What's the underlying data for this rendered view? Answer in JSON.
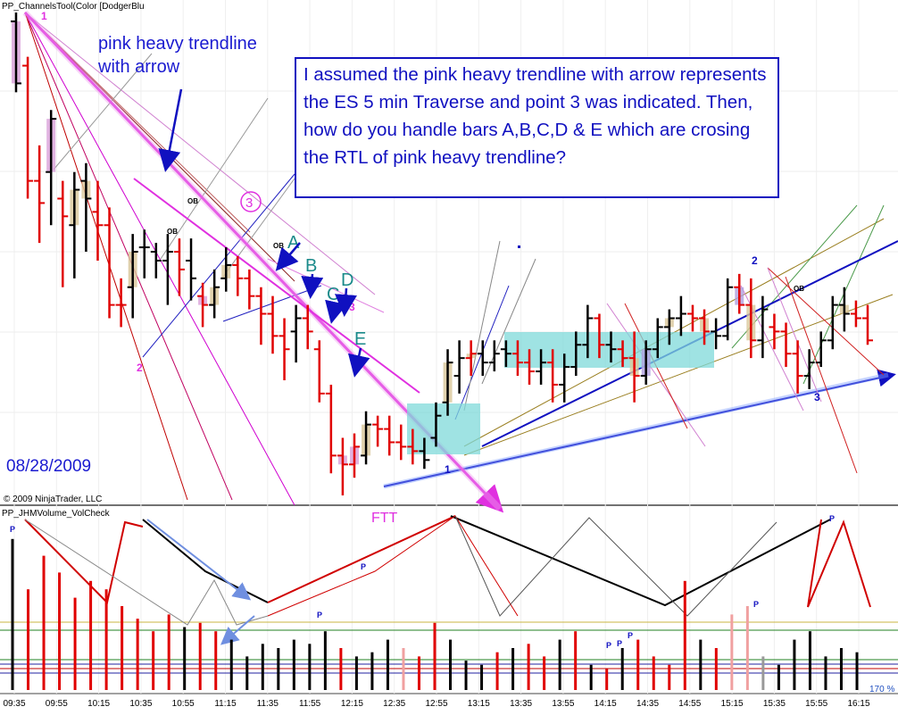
{
  "chart_data": [
    {
      "type": "candlestick",
      "indicator_label": "PP_ChannelsTool(Color [DodgerBlu",
      "copyright": "© 2009 NinjaTrader, LLC",
      "date_label": "08/28/2009",
      "note": "pink heavy trendline\nwith arrow",
      "question": "I assumed the pink heavy trendline with arrow represents the ES 5 min Traverse and point 3 was indicated. Then, how do you handle bars A,B,C,D & E which are crosing  the RTL of pink heavy trendline?",
      "bars": [
        {
          "o": 10,
          "h": 0,
          "l": 90,
          "c": 80,
          "col": "black",
          "shade": "pink"
        },
        {
          "o": 60,
          "h": 50,
          "l": 210,
          "c": 190,
          "col": "red"
        },
        {
          "o": 190,
          "h": 150,
          "l": 260,
          "c": 215,
          "col": "red"
        },
        {
          "o": 180,
          "h": 110,
          "l": 240,
          "c": 120,
          "col": "black",
          "shade": "pink"
        },
        {
          "o": 210,
          "h": 190,
          "l": 310,
          "c": 230,
          "col": "red"
        },
        {
          "o": 240,
          "h": 180,
          "l": 300,
          "c": 200,
          "col": "black",
          "shade": "tan"
        },
        {
          "o": 190,
          "h": 170,
          "l": 270,
          "c": 210,
          "col": "black",
          "shade": "tan"
        },
        {
          "o": 225,
          "h": 190,
          "l": 280,
          "c": 240,
          "col": "red"
        },
        {
          "o": 240,
          "h": 220,
          "l": 345,
          "c": 330,
          "col": "red"
        },
        {
          "o": 330,
          "h": 300,
          "l": 355,
          "c": 330,
          "col": "red"
        },
        {
          "o": 310,
          "h": 250,
          "l": 345,
          "c": 270,
          "col": "black",
          "shade": "tan"
        },
        {
          "o": 265,
          "h": 245,
          "l": 300,
          "c": 265,
          "col": "black"
        },
        {
          "o": 270,
          "h": 260,
          "l": 300,
          "c": 280,
          "col": "black"
        },
        {
          "o": 280,
          "h": 250,
          "l": 330,
          "c": 270,
          "col": "black"
        },
        {
          "o": 270,
          "h": 255,
          "l": 320,
          "c": 290,
          "col": "red"
        },
        {
          "o": 280,
          "h": 255,
          "l": 325,
          "c": 300,
          "col": "black"
        },
        {
          "o": 320,
          "h": 305,
          "l": 355,
          "c": 330,
          "col": "red",
          "shade": "pink"
        },
        {
          "o": 330,
          "h": 290,
          "l": 345,
          "c": 310,
          "col": "black",
          "shade": "tan"
        },
        {
          "o": 300,
          "h": 265,
          "l": 315,
          "c": 285,
          "col": "black",
          "shade": "tan"
        },
        {
          "o": 285,
          "h": 275,
          "l": 320,
          "c": 300,
          "col": "red"
        },
        {
          "o": 300,
          "h": 290,
          "l": 335,
          "c": 320,
          "col": "red"
        },
        {
          "o": 320,
          "h": 310,
          "l": 375,
          "c": 340,
          "col": "red"
        },
        {
          "o": 340,
          "h": 320,
          "l": 385,
          "c": 365,
          "col": "red"
        },
        {
          "o": 365,
          "h": 345,
          "l": 415,
          "c": 380,
          "col": "red"
        },
        {
          "o": 360,
          "h": 330,
          "l": 395,
          "c": 345,
          "col": "black"
        },
        {
          "o": 345,
          "h": 330,
          "l": 380,
          "c": 360,
          "col": "red"
        },
        {
          "o": 380,
          "h": 370,
          "l": 440,
          "c": 430,
          "col": "red"
        },
        {
          "o": 430,
          "h": 420,
          "l": 520,
          "c": 500,
          "col": "red"
        },
        {
          "o": 500,
          "h": 480,
          "l": 545,
          "c": 510,
          "col": "red",
          "shade": "pink"
        },
        {
          "o": 510,
          "h": 475,
          "l": 525,
          "c": 490,
          "col": "red",
          "shade": "pink"
        },
        {
          "o": 500,
          "h": 450,
          "l": 510,
          "c": 465,
          "col": "black",
          "shade": "tan"
        },
        {
          "o": 465,
          "h": 455,
          "l": 490,
          "c": 470,
          "col": "red"
        },
        {
          "o": 470,
          "h": 455,
          "l": 500,
          "c": 485,
          "col": "red"
        },
        {
          "o": 485,
          "h": 465,
          "l": 505,
          "c": 490,
          "col": "red"
        },
        {
          "o": 490,
          "h": 470,
          "l": 510,
          "c": 495,
          "col": "red"
        },
        {
          "o": 495,
          "h": 480,
          "l": 515,
          "c": 505,
          "col": "black"
        },
        {
          "o": 480,
          "h": 440,
          "l": 490,
          "c": 455,
          "col": "black"
        },
        {
          "o": 440,
          "h": 380,
          "l": 455,
          "c": 395,
          "col": "black",
          "shade": "tan"
        },
        {
          "o": 410,
          "h": 370,
          "l": 430,
          "c": 390,
          "col": "black"
        },
        {
          "o": 390,
          "h": 370,
          "l": 410,
          "c": 385,
          "col": "red",
          "shade": "tan"
        },
        {
          "o": 385,
          "h": 370,
          "l": 410,
          "c": 395,
          "col": "black"
        },
        {
          "o": 395,
          "h": 370,
          "l": 405,
          "c": 385,
          "col": "black"
        },
        {
          "o": 380,
          "h": 370,
          "l": 400,
          "c": 385,
          "col": "black"
        },
        {
          "o": 385,
          "h": 370,
          "l": 410,
          "c": 395,
          "col": "red"
        },
        {
          "o": 395,
          "h": 380,
          "l": 420,
          "c": 405,
          "col": "red"
        },
        {
          "o": 405,
          "h": 380,
          "l": 420,
          "c": 395,
          "col": "black"
        },
        {
          "o": 395,
          "h": 380,
          "l": 440,
          "c": 420,
          "col": "red"
        },
        {
          "o": 420,
          "h": 385,
          "l": 440,
          "c": 400,
          "col": "black"
        },
        {
          "o": 400,
          "h": 360,
          "l": 410,
          "c": 375,
          "col": "black"
        },
        {
          "o": 375,
          "h": 330,
          "l": 390,
          "c": 345,
          "col": "black"
        },
        {
          "o": 345,
          "h": 340,
          "l": 390,
          "c": 375,
          "col": "red"
        },
        {
          "o": 375,
          "h": 360,
          "l": 395,
          "c": 380,
          "col": "black"
        },
        {
          "o": 380,
          "h": 370,
          "l": 400,
          "c": 390,
          "col": "red"
        },
        {
          "o": 390,
          "h": 360,
          "l": 440,
          "c": 410,
          "col": "red",
          "shade": "tan"
        },
        {
          "o": 410,
          "h": 370,
          "l": 420,
          "c": 380,
          "col": "black",
          "shade": "purple"
        },
        {
          "o": 380,
          "h": 345,
          "l": 390,
          "c": 355,
          "col": "black"
        },
        {
          "o": 355,
          "h": 335,
          "l": 375,
          "c": 345,
          "col": "black",
          "shade": "tan"
        },
        {
          "o": 345,
          "h": 320,
          "l": 365,
          "c": 340,
          "col": "black"
        },
        {
          "o": 340,
          "h": 330,
          "l": 360,
          "c": 345,
          "col": "red"
        },
        {
          "o": 345,
          "h": 335,
          "l": 375,
          "c": 360,
          "col": "red",
          "shade": "tan"
        },
        {
          "o": 360,
          "h": 345,
          "l": 380,
          "c": 365,
          "col": "black"
        },
        {
          "o": 365,
          "h": 300,
          "l": 370,
          "c": 310,
          "col": "black"
        },
        {
          "o": 310,
          "h": 295,
          "l": 340,
          "c": 330,
          "col": "red",
          "shade": "purple"
        },
        {
          "o": 330,
          "h": 300,
          "l": 390,
          "c": 370,
          "col": "red",
          "shade": "tan"
        },
        {
          "o": 370,
          "h": 320,
          "l": 390,
          "c": 335,
          "col": "black"
        },
        {
          "o": 355,
          "h": 340,
          "l": 380,
          "c": 360,
          "col": "red"
        },
        {
          "o": 360,
          "h": 350,
          "l": 400,
          "c": 385,
          "col": "red"
        },
        {
          "o": 385,
          "h": 370,
          "l": 430,
          "c": 410,
          "col": "red"
        },
        {
          "o": 410,
          "h": 380,
          "l": 425,
          "c": 395,
          "col": "black"
        },
        {
          "o": 395,
          "h": 360,
          "l": 400,
          "c": 370,
          "col": "black"
        },
        {
          "o": 370,
          "h": 320,
          "l": 380,
          "c": 330,
          "col": "black"
        },
        {
          "o": 330,
          "h": 310,
          "l": 360,
          "c": 340,
          "col": "black",
          "shade": "tan"
        },
        {
          "o": 340,
          "h": 325,
          "l": 355,
          "c": 345,
          "col": "red"
        },
        {
          "o": 345,
          "h": 330,
          "l": 375,
          "c": 370,
          "col": "red"
        }
      ],
      "volume": [
        {
          "v": 180,
          "col": "black"
        },
        {
          "v": 120,
          "col": "red"
        },
        {
          "v": 160,
          "col": "red"
        },
        {
          "v": 140,
          "col": "red"
        },
        {
          "v": 110,
          "col": "red"
        },
        {
          "v": 130,
          "col": "red"
        },
        {
          "v": 120,
          "col": "red"
        },
        {
          "v": 100,
          "col": "red"
        },
        {
          "v": 85,
          "col": "red"
        },
        {
          "v": 70,
          "col": "red"
        },
        {
          "v": 90,
          "col": "red"
        },
        {
          "v": 75,
          "col": "black"
        },
        {
          "v": 80,
          "col": "red"
        },
        {
          "v": 70,
          "col": "red"
        },
        {
          "v": 60,
          "col": "black"
        },
        {
          "v": 40,
          "col": "black"
        },
        {
          "v": 55,
          "col": "black"
        },
        {
          "v": 50,
          "col": "black"
        },
        {
          "v": 60,
          "col": "black"
        },
        {
          "v": 55,
          "col": "black"
        },
        {
          "v": 70,
          "col": "black"
        },
        {
          "v": 50,
          "col": "red"
        },
        {
          "v": 40,
          "col": "black"
        },
        {
          "v": 45,
          "col": "black"
        },
        {
          "v": 60,
          "col": "black"
        },
        {
          "v": 50,
          "col": "pink"
        },
        {
          "v": 40,
          "col": "red"
        },
        {
          "v": 80,
          "col": "red"
        },
        {
          "v": 60,
          "col": "black"
        },
        {
          "v": 35,
          "col": "black"
        },
        {
          "v": 30,
          "col": "black"
        },
        {
          "v": 45,
          "col": "red"
        },
        {
          "v": 50,
          "col": "black"
        },
        {
          "v": 55,
          "col": "red"
        },
        {
          "v": 40,
          "col": "red"
        },
        {
          "v": 60,
          "col": "black"
        },
        {
          "v": 70,
          "col": "red"
        },
        {
          "v": 30,
          "col": "black"
        },
        {
          "v": 25,
          "col": "red"
        },
        {
          "v": 50,
          "col": "black"
        },
        {
          "v": 60,
          "col": "red"
        },
        {
          "v": 40,
          "col": "red"
        },
        {
          "v": 30,
          "col": "red"
        },
        {
          "v": 130,
          "col": "red"
        },
        {
          "v": 60,
          "col": "black"
        },
        {
          "v": 50,
          "col": "red"
        },
        {
          "v": 90,
          "col": "pink"
        },
        {
          "v": 100,
          "col": "pink"
        },
        {
          "v": 40,
          "col": "gray"
        },
        {
          "v": 30,
          "col": "black"
        },
        {
          "v": 60,
          "col": "black"
        },
        {
          "v": 70,
          "col": "black"
        },
        {
          "v": 40,
          "col": "black"
        },
        {
          "v": 50,
          "col": "black"
        },
        {
          "v": 45,
          "col": "black"
        }
      ],
      "x_tick_labels": [
        "09:35",
        "09:55",
        "10:15",
        "10:35",
        "10:55",
        "11:15",
        "11:35",
        "11:55",
        "12:15",
        "12:35",
        "12:55",
        "13:15",
        "13:35",
        "13:55",
        "14:15",
        "14:35",
        "14:55",
        "15:15",
        "15:35",
        "15:55",
        "16:15"
      ],
      "volume_label": "PP_JHMVolume_VolCheck",
      "zoom_label": "170 %",
      "labels": {
        "one_top": "1",
        "two_left": "2",
        "two_right": "2",
        "three_circle": "3",
        "three_mid": "3",
        "three_right": "3",
        "one_bottom": "1",
        "ob": "OB",
        "a": "A",
        "b": "B",
        "c": "C",
        "d": "D",
        "e": "E",
        "ftt": "FTT",
        "p": "P"
      },
      "colors": {
        "pink": "#e030e0",
        "blue": "#1010c0",
        "teal": "#1a8a8a",
        "red": "#e00000",
        "cyan": "#7fdada",
        "tan": "#d9c79a"
      }
    }
  ]
}
